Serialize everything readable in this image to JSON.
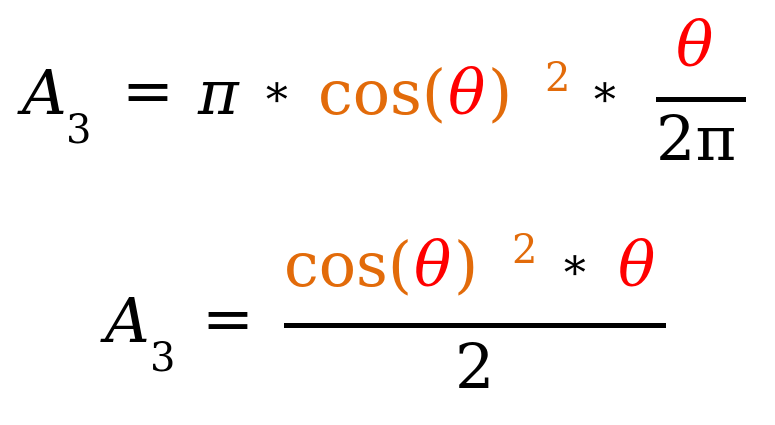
{
  "colors": {
    "text": "#000000",
    "cos_term": "#E26B0A",
    "theta": "#FF0000",
    "background": "#FFFFFF"
  },
  "equation_1": {
    "lhs_symbol": "A",
    "lhs_subscript": "3",
    "equals": "=",
    "pi": "π",
    "times_1": "∗",
    "cos_open": "cos(",
    "theta_in_cos": "θ",
    "cos_close": ")",
    "exponent": "2",
    "times_2": "∗",
    "frac_numerator": "θ",
    "frac_denominator": "2π"
  },
  "equation_2": {
    "lhs_symbol": "A",
    "lhs_subscript": "3",
    "equals": "=",
    "cos_open": "cos(",
    "theta_in_cos": "θ",
    "cos_close": ")",
    "exponent": "2",
    "times": "∗",
    "theta_factor": "θ",
    "frac_denominator": "2"
  }
}
